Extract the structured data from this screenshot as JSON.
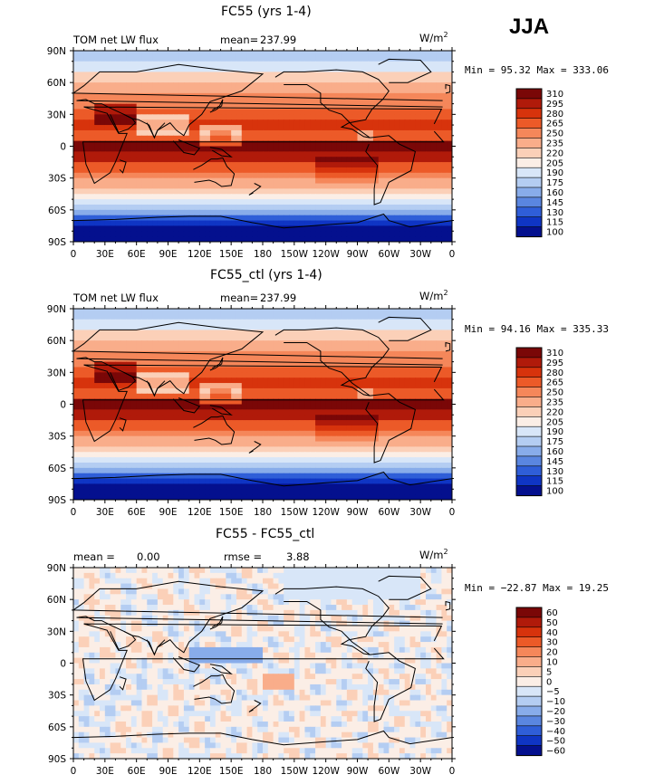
{
  "season": "JJA",
  "panels": [
    {
      "title": "FC55 (yrs 1-4)",
      "left_label": "TOM net LW flux",
      "stat_label": "mean=",
      "stat_value": "237.99",
      "extra_label": "",
      "extra_value": "",
      "units": "W/m",
      "units_sup": "2",
      "min_max": "Min =   95.32 Max = 333.06",
      "colorbar_levels": [
        "310",
        "295",
        "280",
        "265",
        "250",
        "235",
        "220",
        "205",
        "190",
        "175",
        "160",
        "145",
        "130",
        "115",
        "100"
      ],
      "palette": "full"
    },
    {
      "title": "FC55_ctl (yrs 1-4)",
      "left_label": "TOM net LW flux",
      "stat_label": "mean=",
      "stat_value": "237.99",
      "extra_label": "",
      "extra_value": "",
      "units": "W/m",
      "units_sup": "2",
      "min_max": "Min =   94.16 Max = 335.33",
      "colorbar_levels": [
        "310",
        "295",
        "280",
        "265",
        "250",
        "235",
        "220",
        "205",
        "190",
        "175",
        "160",
        "145",
        "130",
        "115",
        "100"
      ],
      "palette": "full"
    },
    {
      "title": "FC55 - FC55_ctl",
      "left_label": "mean =",
      "stat_label": "",
      "stat_value": "0.00",
      "extra_label": "rmse =",
      "extra_value": "3.88",
      "units": "W/m",
      "units_sup": "2",
      "min_max": "Min = −22.87 Max =   19.25",
      "colorbar_levels": [
        "60",
        "50",
        "40",
        "30",
        "20",
        "10",
        "5",
        "0",
        "−5",
        "−10",
        "−20",
        "−30",
        "−40",
        "−50",
        "−60"
      ],
      "palette": "diff"
    }
  ],
  "lat_labels": [
    "90N",
    "60N",
    "30N",
    "0",
    "30S",
    "60S",
    "90S"
  ],
  "lon_labels": [
    "0",
    "30E",
    "60E",
    "90E",
    "120E",
    "150E",
    "180",
    "150W",
    "120W",
    "90W",
    "60W",
    "30W",
    "0"
  ],
  "colors": {
    "full": [
      "#7a0707",
      "#b01a0a",
      "#d7330c",
      "#ec5a28",
      "#f5875a",
      "#f9ad8a",
      "#fbd0b8",
      "#fbeee6",
      "#d8e6f8",
      "#b4cdf2",
      "#88acea",
      "#5a86e0",
      "#2f5ed8",
      "#0f35c4",
      "#04108e"
    ],
    "diff": [
      "#7a0707",
      "#b01a0a",
      "#d7330c",
      "#ec5a28",
      "#f5875a",
      "#f9ad8a",
      "#fbd0b8",
      "#fbeee6",
      "#d8e6f8",
      "#b4cdf2",
      "#88acea",
      "#5a86e0",
      "#2f5ed8",
      "#0f35c4",
      "#04108e"
    ]
  },
  "chart_data": [
    {
      "type": "heatmap",
      "title": "FC55 (yrs 1-4)",
      "subtitle_left": "TOM net LW flux",
      "mean": 237.99,
      "units": "W/m2",
      "min": 95.32,
      "max": 333.06,
      "x_ticks": [
        "0",
        "30E",
        "60E",
        "90E",
        "120E",
        "150E",
        "180",
        "150W",
        "120W",
        "90W",
        "60W",
        "30W",
        "0"
      ],
      "y_ticks": [
        "90N",
        "60N",
        "30N",
        "0",
        "30S",
        "60S",
        "90S"
      ],
      "levels": [
        100,
        115,
        130,
        145,
        160,
        175,
        190,
        205,
        220,
        235,
        250,
        265,
        280,
        295,
        310
      ]
    },
    {
      "type": "heatmap",
      "title": "FC55_ctl (yrs 1-4)",
      "subtitle_left": "TOM net LW flux",
      "mean": 237.99,
      "units": "W/m2",
      "min": 94.16,
      "max": 335.33,
      "x_ticks": [
        "0",
        "30E",
        "60E",
        "90E",
        "120E",
        "150E",
        "180",
        "150W",
        "120W",
        "90W",
        "60W",
        "30W",
        "0"
      ],
      "y_ticks": [
        "90N",
        "60N",
        "30N",
        "0",
        "30S",
        "60S",
        "90S"
      ],
      "levels": [
        100,
        115,
        130,
        145,
        160,
        175,
        190,
        205,
        220,
        235,
        250,
        265,
        280,
        295,
        310
      ]
    },
    {
      "type": "heatmap",
      "title": "FC55 - FC55_ctl",
      "mean": 0.0,
      "rmse": 3.88,
      "units": "W/m2",
      "min": -22.87,
      "max": 19.25,
      "x_ticks": [
        "0",
        "30E",
        "60E",
        "90E",
        "120E",
        "150E",
        "180",
        "150W",
        "120W",
        "90W",
        "60W",
        "30W",
        "0"
      ],
      "y_ticks": [
        "90N",
        "60N",
        "30N",
        "0",
        "30S",
        "60S",
        "90S"
      ],
      "levels": [
        -60,
        -50,
        -40,
        -30,
        -20,
        -10,
        -5,
        0,
        5,
        10,
        20,
        30,
        40,
        50,
        60
      ]
    }
  ]
}
